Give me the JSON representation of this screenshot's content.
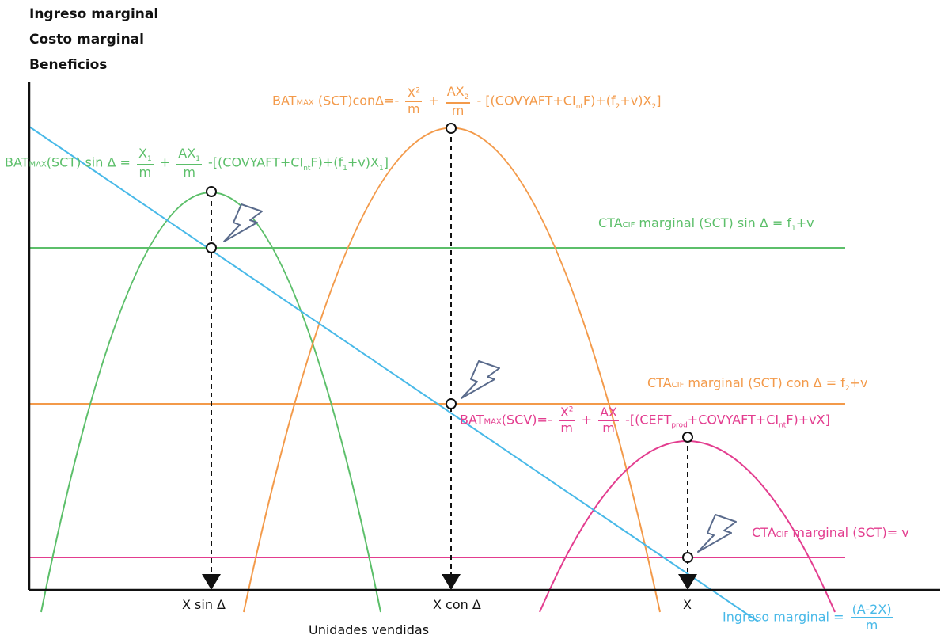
{
  "axes": {
    "y_label_1": "Ingreso marginal",
    "y_label_2": "Costo marginal",
    "y_label_3": "Beneficios",
    "x_label": "Unidades vendidas"
  },
  "x_ticks": {
    "sin": "X sin Δ",
    "con": "X con Δ",
    "x": "X"
  },
  "formulas": {
    "orange_bat": {
      "pre": "BAT",
      "sub": "MAX",
      "mid": " (SCT)conΔ=-",
      "f1_num": "X",
      "f1_num_sub": "2",
      "f1_den": "m",
      "plus": "+",
      "f2_num": "AX",
      "f2_num_sub": "2",
      "f2_den": "m",
      "tail": "- [(COVYAFT+CI",
      "tail_sub": "nt",
      "tail2": "F)+(f",
      "tail2_sub": "2",
      "tail3": "+v)X",
      "tail3_sub": "2",
      "tail4": "]"
    },
    "green_bat": {
      "pre": "BAT",
      "sub": "MAX",
      "mid": "(SCT) sin Δ =",
      "f1_num": "X",
      "f1_num_sub": "1",
      "f1_den": "m",
      "plus": "+",
      "f2_num": "AX",
      "f2_num_sub": "1",
      "f2_den": "m",
      "tail": "-[(COVYAFT+CI",
      "tail_sub": "nt",
      "tail2": "F)+(f",
      "tail2_sub": "1",
      "tail3": "+v)X",
      "tail3_sub": "1",
      "tail4": "]"
    },
    "pink_bat": {
      "pre": "BAT",
      "sub": "MAX",
      "mid": "(SCV)=-",
      "f1_num": "X",
      "f1_den": "m",
      "plus": "+",
      "f2_num": "AX",
      "f2_den": "m",
      "tail": "-[(CEFT",
      "tail_sub": "prod",
      "tail2": "+COVYAFT+CI",
      "tail2_sub": "nt",
      "tail3": "F)+vX]"
    },
    "green_cta": {
      "pre": "CTA",
      "sub": "CIF",
      "text": " marginal (SCT) sin Δ = f",
      "f_sub": "1",
      "end": "+v"
    },
    "orange_cta": {
      "pre": "CTA",
      "sub": "CIF",
      "text": " marginal (SCT) con Δ = f",
      "f_sub": "2",
      "end": "+v"
    },
    "pink_cta": {
      "pre": "CTA",
      "sub": "CIF",
      "text": " marginal (SCT)= v"
    },
    "ingreso": {
      "text": "Ingreso marginal =",
      "num": "(A-2X)",
      "den": "m"
    }
  },
  "colors": {
    "axis": "#111111",
    "green": "#5cbf6a",
    "orange": "#f39a4a",
    "pink": "#e33d8f",
    "blue": "#48b9e8",
    "bolt": "#5a6b8c"
  },
  "icons": [
    "lightning-bolt-icon",
    "lightning-bolt-icon",
    "lightning-bolt-icon"
  ]
}
